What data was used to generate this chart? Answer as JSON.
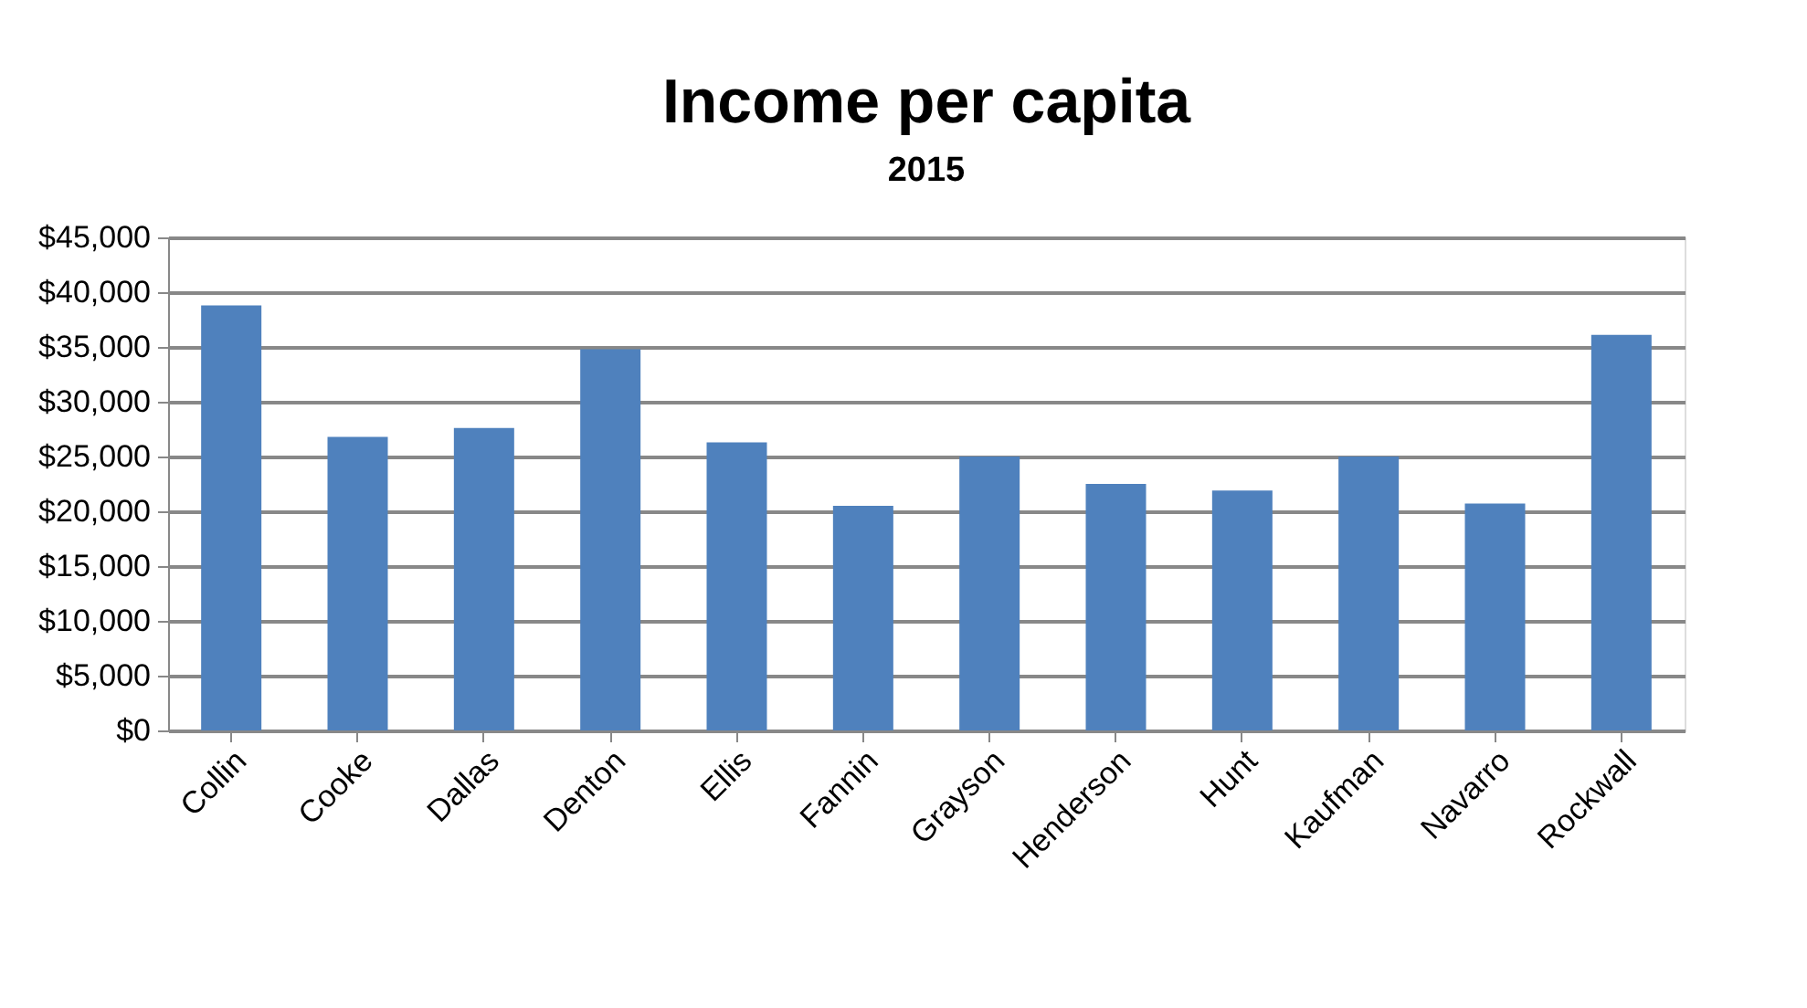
{
  "chart_data": {
    "type": "bar",
    "title": "Income per capita",
    "subtitle": "2015",
    "categories": [
      "Collin",
      "Cooke",
      "Dallas",
      "Denton",
      "Ellis",
      "Fannin",
      "Grayson",
      "Henderson",
      "Hunt",
      "Kaufman",
      "Navarro",
      "Rockwall"
    ],
    "values": [
      38800,
      26800,
      27600,
      34800,
      26300,
      20500,
      25000,
      22500,
      21900,
      25000,
      20700,
      36100
    ],
    "color": "#4f81bd",
    "ylim": [
      0,
      45000
    ],
    "yticks": [
      {
        "value": 0,
        "label": "$0"
      },
      {
        "value": 5000,
        "label": "$5,000"
      },
      {
        "value": 10000,
        "label": "$10,000"
      },
      {
        "value": 15000,
        "label": "$15,000"
      },
      {
        "value": 20000,
        "label": "$20,000"
      },
      {
        "value": 25000,
        "label": "$25,000"
      },
      {
        "value": 30000,
        "label": "$30,000"
      },
      {
        "value": 35000,
        "label": "$35,000"
      },
      {
        "value": 40000,
        "label": "$40,000"
      },
      {
        "value": 45000,
        "label": "$45,000"
      }
    ],
    "grid": "y"
  }
}
